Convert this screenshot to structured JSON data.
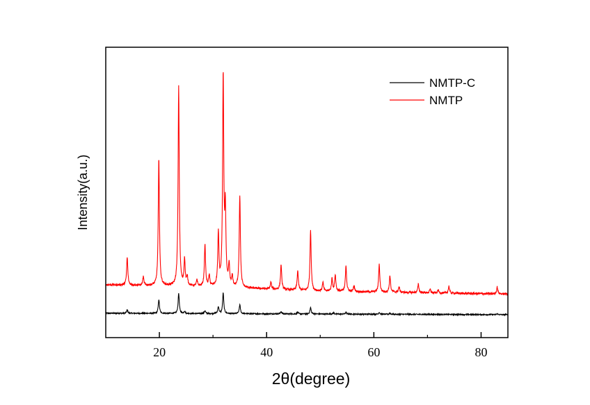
{
  "chart_data": {
    "type": "line",
    "title": "",
    "xlabel": "2θ(degree)",
    "ylabel": "Intensity(a.u.)",
    "xlim": [
      10,
      85
    ],
    "ylim": [
      0,
      1000
    ],
    "x_ticks": [
      20,
      40,
      60,
      80
    ],
    "x_minor_ticks": [
      30,
      50,
      70
    ],
    "y_ticks_shown": false,
    "grid": false,
    "legend_position": "top-right",
    "series": [
      {
        "name": "NMTP-C",
        "color": "#000000",
        "baseline": [
          [
            10,
            84
          ],
          [
            85,
            79
          ]
        ],
        "peaks": [
          [
            14.0,
            12
          ],
          [
            19.9,
            48
          ],
          [
            23.6,
            70
          ],
          [
            24.7,
            8
          ],
          [
            28.5,
            10
          ],
          [
            31.0,
            24
          ],
          [
            31.9,
            72
          ],
          [
            35.0,
            31
          ],
          [
            42.7,
            8
          ],
          [
            45.8,
            6
          ],
          [
            48.2,
            22
          ],
          [
            52.5,
            5
          ],
          [
            54.8,
            6
          ],
          [
            61.0,
            7
          ],
          [
            63.0,
            4
          ],
          [
            83.0,
            3
          ]
        ],
        "noise": 4
      },
      {
        "name": "NMTP",
        "color": "#ff0000",
        "baseline": [
          [
            10,
            182
          ],
          [
            30,
            175
          ],
          [
            50,
            160
          ],
          [
            85,
            150
          ]
        ],
        "peaks": [
          [
            14.0,
            96
          ],
          [
            17.0,
            29
          ],
          [
            19.9,
            438
          ],
          [
            23.6,
            686
          ],
          [
            24.7,
            90
          ],
          [
            25.2,
            30
          ],
          [
            27.0,
            20
          ],
          [
            28.5,
            143
          ],
          [
            29.3,
            36
          ],
          [
            31.0,
            180
          ],
          [
            31.9,
            722
          ],
          [
            32.3,
            250
          ],
          [
            33.0,
            72
          ],
          [
            33.6,
            35
          ],
          [
            35.0,
            318
          ],
          [
            40.8,
            24
          ],
          [
            42.7,
            86
          ],
          [
            45.8,
            67
          ],
          [
            48.2,
            210
          ],
          [
            50.5,
            30
          ],
          [
            52.2,
            43
          ],
          [
            52.8,
            57
          ],
          [
            54.8,
            90
          ],
          [
            56.3,
            20
          ],
          [
            61.0,
            96
          ],
          [
            63.0,
            57
          ],
          [
            64.7,
            19
          ],
          [
            68.3,
            29
          ],
          [
            70.5,
            12
          ],
          [
            72.0,
            10
          ],
          [
            74.0,
            24
          ],
          [
            83.0,
            24
          ]
        ],
        "noise": 7
      }
    ]
  }
}
